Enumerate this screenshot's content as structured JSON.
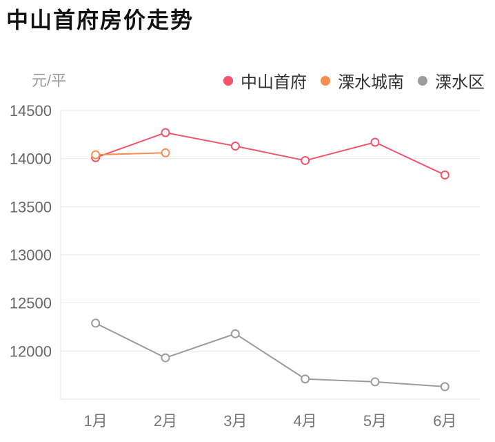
{
  "header": {
    "title": "中山首府房价走势"
  },
  "chart_data": {
    "type": "line",
    "title": "中山首府房价走势",
    "ylabel": "元/平",
    "xlabel": "",
    "categories": [
      "1月",
      "2月",
      "3月",
      "4月",
      "5月",
      "6月"
    ],
    "series": [
      {
        "id": "zhongshan-shoufu",
        "name": "中山首府",
        "color": "#F4536A",
        "values": [
          14010,
          14270,
          14130,
          13980,
          14170,
          13830
        ]
      },
      {
        "id": "lishui-chengnan",
        "name": "溧水城南",
        "color": "#FA8C4F",
        "values": [
          14040,
          14060,
          null,
          null,
          null,
          null
        ]
      },
      {
        "id": "lishui-qu",
        "name": "溧水区",
        "color": "#9B9B9B",
        "values": [
          12290,
          11930,
          12180,
          11710,
          11680,
          11630
        ]
      }
    ],
    "ylim": [
      11500,
      14500
    ],
    "yticks": [
      14500,
      14000,
      13500,
      13000,
      12500,
      12000
    ],
    "grid": true,
    "legend_position": "top-right",
    "marker": "open-circle"
  },
  "colors": {
    "title": "#111111",
    "unit_label": "#999999",
    "legend_text": "#333333",
    "ytick_label": "#666666",
    "xtick_label": "#757575",
    "gridline": "#e8e8e8",
    "axis_line": "#e0e0e0",
    "background": "#ffffff",
    "marker_fill": "#ffffff"
  }
}
